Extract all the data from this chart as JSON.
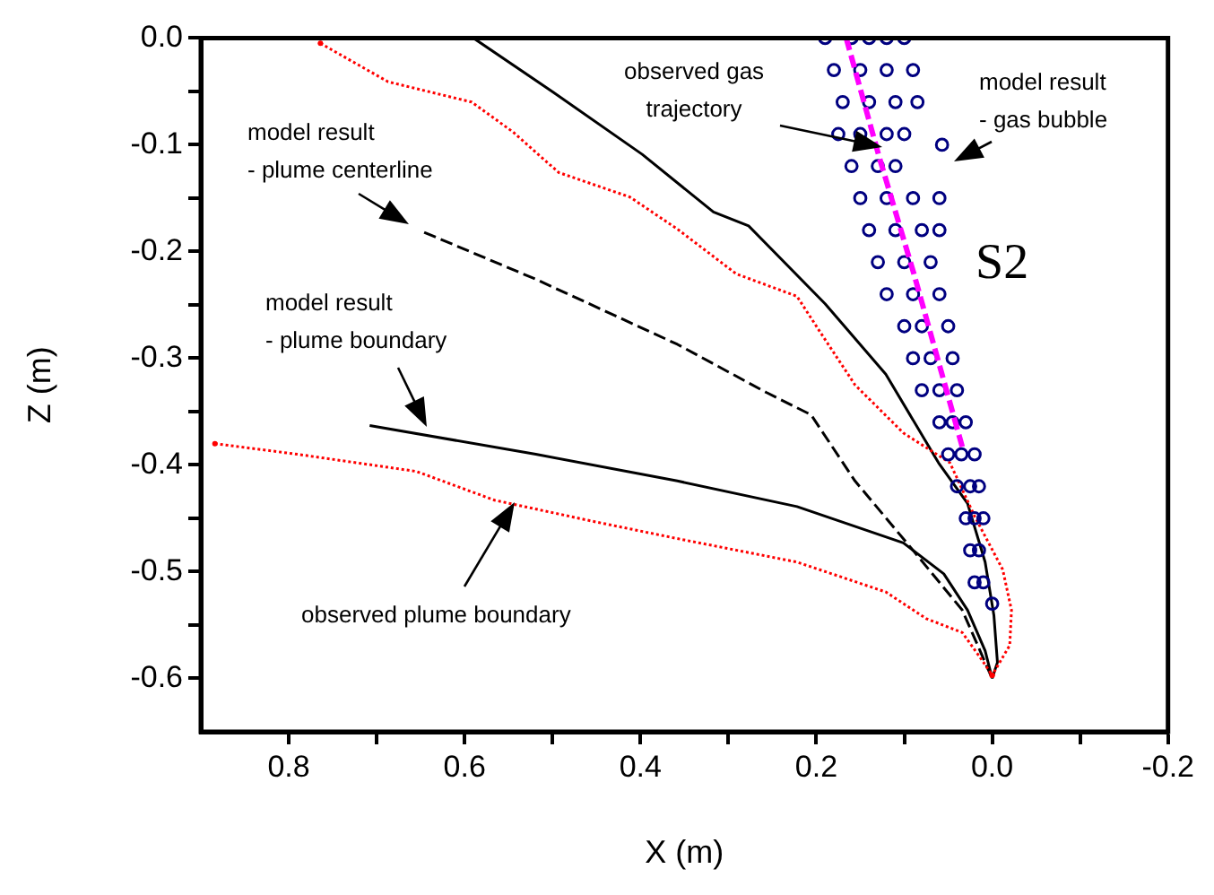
{
  "chart_data": {
    "type": "line",
    "xlabel": "X (m)",
    "ylabel": "Z (m)",
    "xlim": [
      0.9,
      -0.2
    ],
    "xticks": [
      0.8,
      {
        "value": 0.7,
        "label": null
      },
      0.6,
      {
        "value": 0.5,
        "label": null
      },
      0.4,
      {
        "value": 0.3,
        "label": null
      },
      0.2,
      {
        "value": 0.1,
        "label": null
      },
      {
        "value": 0,
        "label": "0.0"
      },
      {
        "value": -0.1,
        "label": null
      },
      -0.2
    ],
    "ylim": [
      -0.65,
      0
    ],
    "yticks": [
      {
        "value": 0,
        "label": "0.0"
      },
      {
        "value": -0.05,
        "label": null
      },
      -0.1,
      {
        "value": -0.15,
        "label": null
      },
      -0.2,
      {
        "value": -0.25,
        "label": null
      },
      -0.3,
      {
        "value": -0.35,
        "label": null
      },
      -0.4,
      {
        "value": -0.45,
        "label": null
      },
      -0.5,
      {
        "value": -0.55,
        "label": null
      },
      -0.6
    ],
    "grid": false,
    "legend": false,
    "series": [
      {
        "color": "#000000",
        "line_style": "solid",
        "marker": "none",
        "x": [
          0.59,
          0.499,
          0.398,
          0.317,
          0.277,
          0.19,
          0.121,
          0.061,
          0.028,
          0.008,
          -0.002,
          -0.006,
          0.0
        ],
        "values": [
          0.0,
          -0.051,
          -0.109,
          -0.163,
          -0.176,
          -0.249,
          -0.315,
          -0.398,
          -0.436,
          -0.491,
          -0.541,
          -0.585,
          -0.6
        ]
      },
      {
        "color": "#000000",
        "line_style": "solid",
        "marker": "none",
        "x": [
          0.708,
          0.519,
          0.358,
          0.222,
          0.101,
          0.055,
          0.028,
          0.008,
          0.0
        ],
        "values": [
          -0.363,
          -0.39,
          -0.415,
          -0.439,
          -0.473,
          -0.502,
          -0.536,
          -0.574,
          -0.6
        ]
      },
      {
        "color": "#000000",
        "line_style": "dashed",
        "marker": "none",
        "x": [
          0.646,
          0.519,
          0.358,
          0.257,
          0.206,
          0.156,
          0.089,
          0.034,
          0.008,
          0.0
        ],
        "values": [
          -0.182,
          -0.226,
          -0.287,
          -0.332,
          -0.353,
          -0.415,
          -0.481,
          -0.536,
          -0.585,
          -0.6
        ]
      },
      {
        "color": "#ff0000",
        "line_style": "dotted",
        "marker": "none",
        "x": [
          0.764,
          0.687,
          0.592,
          0.545,
          0.493,
          0.412,
          0.358,
          0.291,
          0.222,
          0.196,
          0.156,
          0.101,
          0.048,
          0.02,
          -0.012,
          -0.022,
          -0.02,
          0.0
        ],
        "values": [
          -0.005,
          -0.041,
          -0.06,
          -0.088,
          -0.126,
          -0.149,
          -0.179,
          -0.221,
          -0.242,
          -0.275,
          -0.325,
          -0.37,
          -0.398,
          -0.448,
          -0.498,
          -0.536,
          -0.569,
          -0.597
        ]
      },
      {
        "color": "#ff0000",
        "line_style": "dotted",
        "marker": "none",
        "x": [
          0.884,
          0.79,
          0.655,
          0.566,
          0.453,
          0.358,
          0.222,
          0.121,
          0.075,
          0.034,
          0.014,
          0.0
        ],
        "values": [
          -0.38,
          -0.39,
          -0.406,
          -0.433,
          -0.453,
          -0.469,
          -0.491,
          -0.519,
          -0.544,
          -0.557,
          -0.58,
          -0.597
        ]
      },
      {
        "type": "scatter",
        "color": "#000080",
        "marker": "circle",
        "x": [
          0.19,
          0.16,
          0.14,
          0.12,
          0.1,
          0.18,
          0.15,
          0.12,
          0.09,
          0.17,
          0.14,
          0.11,
          0.085,
          0.175,
          0.15,
          0.12,
          0.1,
          0.16,
          0.13,
          0.11,
          0.057,
          0.15,
          0.12,
          0.09,
          0.06,
          0.14,
          0.11,
          0.08,
          0.06,
          0.13,
          0.1,
          0.07,
          0.12,
          0.09,
          0.06,
          0.1,
          0.08,
          0.05,
          0.09,
          0.07,
          0.045,
          0.08,
          0.06,
          0.04,
          0.06,
          0.045,
          0.03,
          0.05,
          0.035,
          0.02,
          0.04,
          0.025,
          0.015,
          0.03,
          0.02,
          0.01,
          0.025,
          0.015,
          0.02,
          0.01,
          0.0
        ],
        "values": [
          0.0,
          0.0,
          0.0,
          0.0,
          0.0,
          -0.03,
          -0.03,
          -0.03,
          -0.03,
          -0.06,
          -0.06,
          -0.06,
          -0.06,
          -0.09,
          -0.09,
          -0.09,
          -0.09,
          -0.12,
          -0.12,
          -0.12,
          -0.1,
          -0.15,
          -0.15,
          -0.15,
          -0.15,
          -0.18,
          -0.18,
          -0.18,
          -0.18,
          -0.21,
          -0.21,
          -0.21,
          -0.24,
          -0.24,
          -0.24,
          -0.27,
          -0.27,
          -0.27,
          -0.3,
          -0.3,
          -0.3,
          -0.33,
          -0.33,
          -0.33,
          -0.36,
          -0.36,
          -0.36,
          -0.39,
          -0.39,
          -0.39,
          -0.42,
          -0.42,
          -0.42,
          -0.45,
          -0.45,
          -0.45,
          -0.48,
          -0.48,
          -0.51,
          -0.51,
          -0.53
        ]
      },
      {
        "color": "#ff00ff",
        "line_style": "dashed",
        "marker": "none",
        "x": [
          0.166,
          0.129,
          0.089,
          0.034
        ],
        "values": [
          0.0,
          -0.11,
          -0.221,
          -0.383
        ]
      }
    ],
    "annotations": [
      "observed gas\ntrajectory",
      "model result\n- gas bubble",
      "model result\n- plume centerline",
      "model result\n- plume boundary",
      "observed plume boundary",
      "S2"
    ]
  }
}
